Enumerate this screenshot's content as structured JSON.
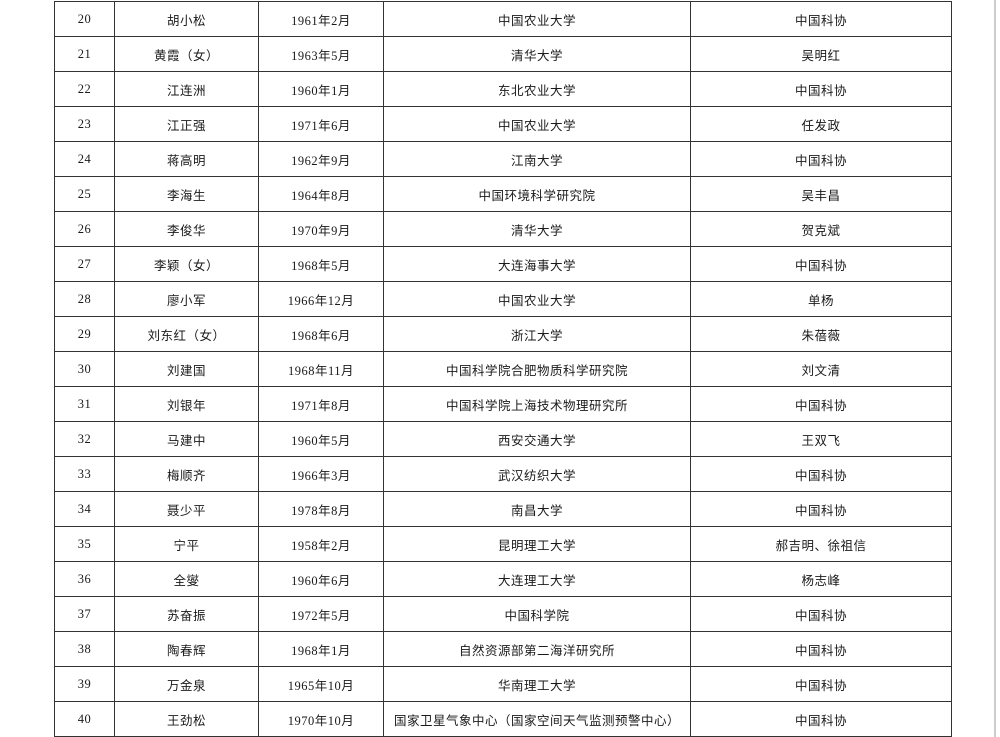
{
  "page": {
    "background_color": "#ffffff",
    "table_border_color": "#333333",
    "text_color": "#1a1a1a",
    "edge_line_color": "#cccccc"
  },
  "table": {
    "rows": [
      {
        "no": "20",
        "name": "胡小松",
        "birth": "1961年2月",
        "org": "中国农业大学",
        "rec": "中国科协"
      },
      {
        "no": "21",
        "name": "黄霞（女）",
        "birth": "1963年5月",
        "org": "清华大学",
        "rec": "吴明红"
      },
      {
        "no": "22",
        "name": "江连洲",
        "birth": "1960年1月",
        "org": "东北农业大学",
        "rec": "中国科协"
      },
      {
        "no": "23",
        "name": "江正强",
        "birth": "1971年6月",
        "org": "中国农业大学",
        "rec": "任发政"
      },
      {
        "no": "24",
        "name": "蒋高明",
        "birth": "1962年9月",
        "org": "江南大学",
        "rec": "中国科协"
      },
      {
        "no": "25",
        "name": "李海生",
        "birth": "1964年8月",
        "org": "中国环境科学研究院",
        "rec": "吴丰昌"
      },
      {
        "no": "26",
        "name": "李俊华",
        "birth": "1970年9月",
        "org": "清华大学",
        "rec": "贺克斌"
      },
      {
        "no": "27",
        "name": "李颖（女）",
        "birth": "1968年5月",
        "org": "大连海事大学",
        "rec": "中国科协"
      },
      {
        "no": "28",
        "name": "廖小军",
        "birth": "1966年12月",
        "org": "中国农业大学",
        "rec": "单杨"
      },
      {
        "no": "29",
        "name": "刘东红（女）",
        "birth": "1968年6月",
        "org": "浙江大学",
        "rec": "朱蓓薇"
      },
      {
        "no": "30",
        "name": "刘建国",
        "birth": "1968年11月",
        "org": "中国科学院合肥物质科学研究院",
        "rec": "刘文清"
      },
      {
        "no": "31",
        "name": "刘银年",
        "birth": "1971年8月",
        "org": "中国科学院上海技术物理研究所",
        "rec": "中国科协"
      },
      {
        "no": "32",
        "name": "马建中",
        "birth": "1960年5月",
        "org": "西安交通大学",
        "rec": "王双飞"
      },
      {
        "no": "33",
        "name": "梅顺齐",
        "birth": "1966年3月",
        "org": "武汉纺织大学",
        "rec": "中国科协"
      },
      {
        "no": "34",
        "name": "聂少平",
        "birth": "1978年8月",
        "org": "南昌大学",
        "rec": "中国科协"
      },
      {
        "no": "35",
        "name": "宁平",
        "birth": "1958年2月",
        "org": "昆明理工大学",
        "rec": "郝吉明、徐祖信"
      },
      {
        "no": "36",
        "name": "全燮",
        "birth": "1960年6月",
        "org": "大连理工大学",
        "rec": "杨志峰"
      },
      {
        "no": "37",
        "name": "苏奋振",
        "birth": "1972年5月",
        "org": "中国科学院",
        "rec": "中国科协"
      },
      {
        "no": "38",
        "name": "陶春辉",
        "birth": "1968年1月",
        "org": "自然资源部第二海洋研究所",
        "rec": "中国科协"
      },
      {
        "no": "39",
        "name": "万金泉",
        "birth": "1965年10月",
        "org": "华南理工大学",
        "rec": "中国科协"
      },
      {
        "no": "40",
        "name": "王劲松",
        "birth": "1970年10月",
        "org": "国家卫星气象中心（国家空间天气监测预警中心）",
        "rec": "中国科协"
      }
    ]
  }
}
